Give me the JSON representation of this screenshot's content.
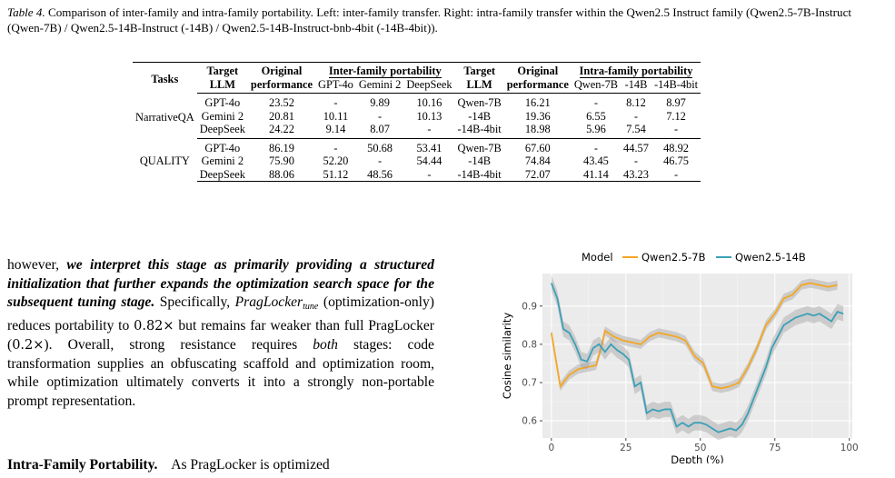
{
  "caption": {
    "label": "Table 4.",
    "text": " Comparison of inter-family and intra-family portability. Left: inter-family transfer. Right: intra-family transfer within the Qwen2.5 Instruct family (Qwen2.5-7B-Instruct (Qwen-7B) / Qwen2.5-14B-Instruct (-14B) / Qwen2.5-14B-Instruct-bnb-4bit (-14B-4bit))."
  },
  "table": {
    "headers": {
      "tasks": "Tasks",
      "target_llm_1": "Target",
      "target_llm_2": "LLM",
      "orig_1": "Original",
      "orig_2": "performance",
      "inter": "Inter-family portability",
      "intra": "Intra-family portability",
      "inter_cols": [
        "GPT-4o",
        "Gemini 2",
        "DeepSeek"
      ],
      "intra_cols": [
        "Qwen-7B",
        "-14B",
        "-14B-4bit"
      ]
    },
    "groups": [
      {
        "task": "NarrativeQA",
        "rows": [
          {
            "target": "GPT-4o",
            "orig": "23.52",
            "inter": [
              "-",
              "9.89",
              "10.16"
            ],
            "target2": "Qwen-7B",
            "orig2": "16.21",
            "intra": [
              "-",
              "8.12",
              "8.97"
            ]
          },
          {
            "target": "Gemini 2",
            "orig": "20.81",
            "inter": [
              "10.11",
              "-",
              "10.13"
            ],
            "target2": "-14B",
            "orig2": "19.36",
            "intra": [
              "6.55",
              "-",
              "7.12"
            ]
          },
          {
            "target": "DeepSeek",
            "orig": "24.22",
            "inter": [
              "9.14",
              "8.07",
              "-"
            ],
            "target2": "-14B-4bit",
            "orig2": "18.98",
            "intra": [
              "5.96",
              "7.54",
              "-"
            ]
          }
        ]
      },
      {
        "task": "QUALITY",
        "rows": [
          {
            "target": "GPT-4o",
            "orig": "86.19",
            "inter": [
              "-",
              "50.68",
              "53.41"
            ],
            "target2": "Qwen-7B",
            "orig2": "67.60",
            "intra": [
              "-",
              "44.57",
              "48.92"
            ]
          },
          {
            "target": "Gemini 2",
            "orig": "75.90",
            "inter": [
              "52.20",
              "-",
              "54.44"
            ],
            "target2": "-14B",
            "orig2": "74.84",
            "intra": [
              "43.45",
              "-",
              "46.75"
            ]
          },
          {
            "target": "DeepSeek",
            "orig": "88.06",
            "inter": [
              "51.12",
              "48.56",
              "-"
            ],
            "target2": "-14B-4bit",
            "orig2": "72.07",
            "intra": [
              "41.14",
              "43.23",
              "-"
            ]
          }
        ]
      }
    ]
  },
  "paragraph": {
    "p1": "however, ",
    "p2": "we interpret this stage as primarily providing a structured initialization that further expands the optimization search space for the subsequent tuning stage.",
    "p3": " Specifically, ",
    "p4": "PragLocker",
    "p5": "tune",
    "p6": " (optimization-only) reduces portability to ",
    "p7": "0.82×",
    "p8": " but remains far weaker than full PragLocker (",
    "p9": "0.2×",
    "p10": "). Overall, strong resistance requires ",
    "p11": "both",
    "p12": " stages: code transformation supplies an obfuscating scaffold and optimization room, while optimization ultimately converts it into a strongly non-portable prompt representation."
  },
  "section": {
    "heading": "Intra-Family Portability.",
    "text": "As PragLocker is optimized"
  },
  "chart_data": {
    "type": "line",
    "xlabel": "Depth (%)",
    "ylabel": "Cosine similarity",
    "xlim": [
      -3,
      101
    ],
    "ylim": [
      0.555,
      0.985
    ],
    "xticks": [
      0,
      25,
      50,
      75,
      100
    ],
    "yticks": [
      0.6,
      0.7,
      0.8,
      0.9
    ],
    "legend_title": "Model",
    "legend_position": "top",
    "grid": true,
    "series": [
      {
        "name": "Qwen2.5-7B",
        "color": "#f5a623",
        "band": 0.012,
        "x": [
          0,
          3,
          6,
          9,
          12,
          15,
          17,
          18,
          21,
          24,
          27,
          30,
          33,
          36,
          39,
          42,
          45,
          48,
          51,
          54,
          57,
          60,
          63,
          66,
          69,
          72,
          75,
          78,
          81,
          84,
          87,
          90,
          93,
          96
        ],
        "y": [
          0.83,
          0.69,
          0.72,
          0.735,
          0.74,
          0.745,
          0.8,
          0.835,
          0.82,
          0.81,
          0.805,
          0.8,
          0.82,
          0.83,
          0.825,
          0.82,
          0.81,
          0.77,
          0.75,
          0.69,
          0.685,
          0.69,
          0.7,
          0.74,
          0.79,
          0.85,
          0.88,
          0.92,
          0.93,
          0.955,
          0.96,
          0.955,
          0.95,
          0.955
        ]
      },
      {
        "name": "Qwen2.5-14B",
        "color": "#3aa0b8",
        "band": 0.02,
        "x": [
          0,
          2,
          4,
          6,
          8,
          10,
          12,
          14,
          16,
          18,
          20,
          22,
          24,
          26,
          28,
          30,
          32,
          34,
          36,
          38,
          40,
          42,
          44,
          46,
          48,
          50,
          52,
          54,
          56,
          58,
          60,
          62,
          64,
          66,
          68,
          70,
          72,
          74,
          76,
          78,
          80,
          82,
          84,
          86,
          88,
          90,
          92,
          94,
          96,
          98
        ],
        "y": [
          0.96,
          0.92,
          0.84,
          0.83,
          0.8,
          0.76,
          0.755,
          0.79,
          0.8,
          0.78,
          0.8,
          0.785,
          0.775,
          0.76,
          0.69,
          0.7,
          0.62,
          0.63,
          0.625,
          0.63,
          0.63,
          0.585,
          0.595,
          0.585,
          0.595,
          0.595,
          0.59,
          0.58,
          0.57,
          0.575,
          0.58,
          0.575,
          0.59,
          0.62,
          0.66,
          0.7,
          0.74,
          0.79,
          0.82,
          0.85,
          0.86,
          0.87,
          0.875,
          0.88,
          0.875,
          0.88,
          0.87,
          0.86,
          0.885,
          0.88
        ]
      }
    ]
  }
}
